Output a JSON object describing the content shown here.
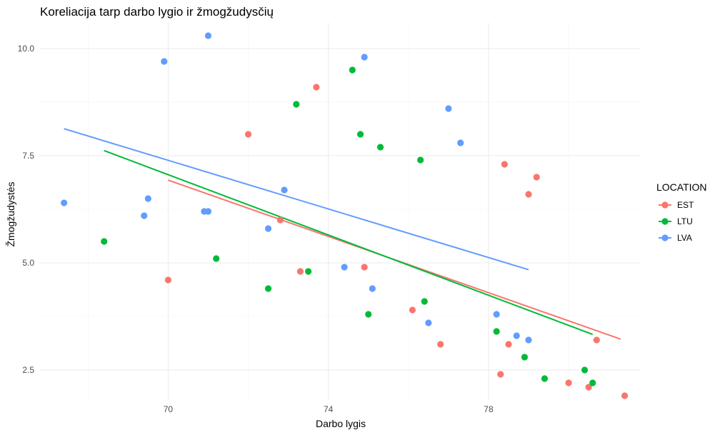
{
  "chart_data": {
    "type": "scatter",
    "title": "Koreliacija tarp darbo lygio ir žmogžudysčių",
    "xlabel": "Darbo lygis",
    "ylabel": "Žmogžudystės",
    "xlim": [
      66.8,
      81.8
    ],
    "ylim": [
      1.8,
      10.6
    ],
    "x_ticks": [
      {
        "value": 70,
        "label": "70"
      },
      {
        "value": 74,
        "label": "74"
      },
      {
        "value": 78,
        "label": "78"
      }
    ],
    "y_ticks": [
      {
        "value": 2.5,
        "label": "2.5"
      },
      {
        "value": 5.0,
        "label": "5.0"
      },
      {
        "value": 7.5,
        "label": "7.5"
      },
      {
        "value": 10.0,
        "label": "10.0"
      }
    ],
    "grid": true,
    "legend": {
      "title": "LOCATION",
      "position": "right"
    },
    "series": [
      {
        "name": "EST",
        "color": "#f8766d",
        "points": [
          [
            70.0,
            4.6
          ],
          [
            72.0,
            8.0
          ],
          [
            72.8,
            6.0
          ],
          [
            73.3,
            4.8
          ],
          [
            73.7,
            9.1
          ],
          [
            74.9,
            4.9
          ],
          [
            76.1,
            3.9
          ],
          [
            76.8,
            3.1
          ],
          [
            78.3,
            2.4
          ],
          [
            78.4,
            7.3
          ],
          [
            78.5,
            3.1
          ],
          [
            79.0,
            6.6
          ],
          [
            79.2,
            7.0
          ],
          [
            80.0,
            2.2
          ],
          [
            80.5,
            2.1
          ],
          [
            80.7,
            3.2
          ],
          [
            81.4,
            1.9
          ]
        ],
        "trend": [
          [
            70.0,
            6.93
          ],
          [
            81.3,
            3.22
          ]
        ]
      },
      {
        "name": "LTU",
        "color": "#00ba38",
        "points": [
          [
            68.4,
            5.5
          ],
          [
            71.2,
            5.1
          ],
          [
            72.5,
            4.4
          ],
          [
            73.2,
            8.7
          ],
          [
            73.5,
            4.8
          ],
          [
            74.6,
            9.5
          ],
          [
            74.8,
            8.0
          ],
          [
            75.0,
            3.8
          ],
          [
            75.3,
            7.7
          ],
          [
            76.3,
            7.4
          ],
          [
            76.4,
            4.1
          ],
          [
            78.2,
            3.4
          ],
          [
            78.9,
            2.8
          ],
          [
            79.4,
            2.3
          ],
          [
            80.4,
            2.5
          ],
          [
            80.6,
            2.2
          ]
        ],
        "trend": [
          [
            68.4,
            7.62
          ],
          [
            80.6,
            3.33
          ]
        ]
      },
      {
        "name": "LVA",
        "color": "#619cff",
        "points": [
          [
            67.4,
            6.4
          ],
          [
            69.4,
            6.1
          ],
          [
            69.5,
            6.5
          ],
          [
            69.9,
            9.7
          ],
          [
            70.9,
            6.2
          ],
          [
            71.0,
            6.2
          ],
          [
            71.0,
            10.3
          ],
          [
            72.5,
            5.8
          ],
          [
            72.9,
            6.7
          ],
          [
            74.4,
            4.9
          ],
          [
            74.9,
            9.8
          ],
          [
            75.1,
            4.4
          ],
          [
            76.5,
            3.6
          ],
          [
            77.0,
            8.6
          ],
          [
            77.3,
            7.8
          ],
          [
            78.2,
            3.8
          ],
          [
            78.7,
            3.3
          ],
          [
            79.0,
            3.2
          ]
        ],
        "trend": [
          [
            67.4,
            8.13
          ],
          [
            79.0,
            4.84
          ]
        ]
      }
    ]
  }
}
